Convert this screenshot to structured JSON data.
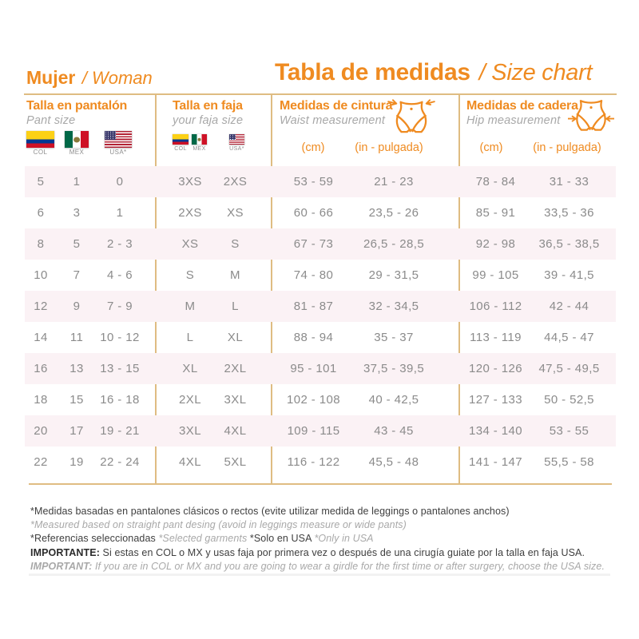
{
  "page": {
    "gender": {
      "es": "Mujer",
      "en": "/ Woman"
    },
    "title": {
      "es": "Tabla de medidas",
      "en": "/ Size chart"
    }
  },
  "columns": {
    "pant": {
      "title": "Talla en pantalón",
      "subtitle": "Pant size",
      "flags": [
        {
          "country": "colombia",
          "label": "COL"
        },
        {
          "country": "mexico",
          "label": "MEX"
        },
        {
          "country": "usa",
          "label": "USA*"
        }
      ]
    },
    "faja": {
      "title": "Talla en faja",
      "subtitle": "your faja size",
      "flags": [
        {
          "country": "colombia",
          "label": "COL"
        },
        {
          "country": "mexico",
          "label": "MEX"
        },
        {
          "country": "usa",
          "label": "USA*"
        }
      ]
    },
    "waist": {
      "title": "Medidas de cintura",
      "subtitle": "Waist measurement",
      "unit_cm": "(cm)",
      "unit_in": "(in - pulgada)"
    },
    "hip": {
      "title": "Medidas de cadera",
      "subtitle": "Hip measurement",
      "unit_cm": "(cm)",
      "unit_in": "(in - pulgada)"
    }
  },
  "table": {
    "row_keys": [
      "pant_col",
      "pant_mex",
      "pant_usa",
      "faja_colmex",
      "faja_usa",
      "waist_cm",
      "waist_in",
      "_sp1",
      "hip_cm",
      "hip_in",
      "_sp2"
    ],
    "rows": [
      {
        "pant_col": "5",
        "pant_mex": "1",
        "pant_usa": "0",
        "faja_colmex": "3XS",
        "faja_usa": "2XS",
        "waist_cm": "53 - 59",
        "waist_in": "21 - 23",
        "hip_cm": "78 - 84",
        "hip_in": "31 - 33"
      },
      {
        "pant_col": "6",
        "pant_mex": "3",
        "pant_usa": "1",
        "faja_colmex": "2XS",
        "faja_usa": "XS",
        "waist_cm": "60 - 66",
        "waist_in": "23,5 - 26",
        "hip_cm": "85 - 91",
        "hip_in": "33,5 - 36"
      },
      {
        "pant_col": "8",
        "pant_mex": "5",
        "pant_usa": "2 - 3",
        "faja_colmex": "XS",
        "faja_usa": "S",
        "waist_cm": "67 - 73",
        "waist_in": "26,5 - 28,5",
        "hip_cm": "92 - 98",
        "hip_in": "36,5 - 38,5"
      },
      {
        "pant_col": "10",
        "pant_mex": "7",
        "pant_usa": "4 - 6",
        "faja_colmex": "S",
        "faja_usa": "M",
        "waist_cm": "74 - 80",
        "waist_in": "29 - 31,5",
        "hip_cm": "99 - 105",
        "hip_in": "39 - 41,5"
      },
      {
        "pant_col": "12",
        "pant_mex": "9",
        "pant_usa": "7 - 9",
        "faja_colmex": "M",
        "faja_usa": "L",
        "waist_cm": "81 - 87",
        "waist_in": "32 - 34,5",
        "hip_cm": "106 - 112",
        "hip_in": "42 - 44"
      },
      {
        "pant_col": "14",
        "pant_mex": "11",
        "pant_usa": "10 - 12",
        "faja_colmex": "L",
        "faja_usa": "XL",
        "waist_cm": "88 - 94",
        "waist_in": "35 - 37",
        "hip_cm": "113 - 119",
        "hip_in": "44,5 - 47"
      },
      {
        "pant_col": "16",
        "pant_mex": "13",
        "pant_usa": "13 - 15",
        "faja_colmex": "XL",
        "faja_usa": "2XL",
        "waist_cm": "95 - 101",
        "waist_in": "37,5 - 39,5",
        "hip_cm": "120 - 126",
        "hip_in": "47,5 - 49,5"
      },
      {
        "pant_col": "18",
        "pant_mex": "15",
        "pant_usa": "16 - 18",
        "faja_colmex": "2XL",
        "faja_usa": "3XL",
        "waist_cm": "102 - 108",
        "waist_in": "40 - 42,5",
        "hip_cm": "127 - 133",
        "hip_in": "50 - 52,5"
      },
      {
        "pant_col": "20",
        "pant_mex": "17",
        "pant_usa": "19 - 21",
        "faja_colmex": "3XL",
        "faja_usa": "4XL",
        "waist_cm": "109 - 115",
        "waist_in": "43 - 45",
        "hip_cm": "134 - 140",
        "hip_in": "53 - 55"
      },
      {
        "pant_col": "22",
        "pant_mex": "19",
        "pant_usa": "22 - 24",
        "faja_colmex": "4XL",
        "faja_usa": "5XL",
        "waist_cm": "116 - 122",
        "waist_in": "45,5 - 48",
        "hip_cm": "141 - 147",
        "hip_in": "55,5 - 58"
      }
    ]
  },
  "notes": {
    "line1": "*Medidas basadas en pantalones clásicos o rectos (evite utilizar medida de leggings o pantalones anchos)",
    "line2": "*Measured based on straight pant desing (avoid in leggings measure or wide pants)",
    "line3_a": "*Referencias seleccionadas ",
    "line3_b": "*Selected garments ",
    "line3_c": "*Solo en USA ",
    "line3_d": "*Only in USA",
    "line4_label": "IMPORTANTE:",
    "line4_text": " Si estas en COL o MX y usas faja por primera vez o después de una cirugía guiate por la talla en faja USA.",
    "line5_label": "IMPORTANT:",
    "line5_text": " If you are in COL or MX and you are going to wear a girdle for the first time or after surgery, choose the USA size."
  },
  "colors": {
    "accent_orange": "#EF8B21",
    "grid_line_tan": "#DFBC82",
    "row_alt_pink": "#FBF2F5",
    "data_gray": "#8B8B8B",
    "muted_gray": "#A8A8A8",
    "dark_text": "#3E3E3E"
  }
}
